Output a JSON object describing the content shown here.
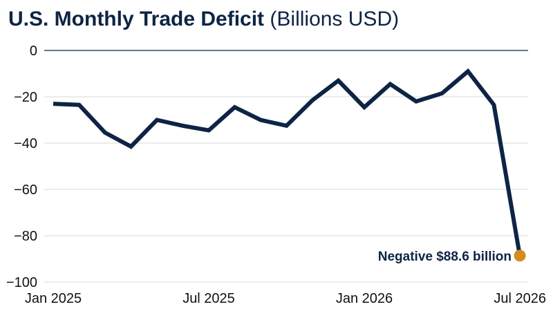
{
  "title": {
    "main": "U.S. Monthly Trade Deficit",
    "sub": "(Billions USD)"
  },
  "chart_data": {
    "type": "line",
    "title": "U.S. Monthly Trade Deficit (Billions USD)",
    "x": [
      "2025-01",
      "2025-02",
      "2025-03",
      "2025-04",
      "2025-05",
      "2025-06",
      "2025-07",
      "2025-08",
      "2025-09",
      "2025-10",
      "2025-11",
      "2025-12",
      "2026-01",
      "2026-02",
      "2026-03",
      "2026-04",
      "2026-05",
      "2026-06",
      "2026-07"
    ],
    "series": [
      {
        "name": "",
        "values": [
          -23,
          -23.5,
          -35.5,
          -41.5,
          -30,
          -32.5,
          -34.5,
          -24.5,
          -30,
          -32.5,
          -21.5,
          -13,
          -24.5,
          -14.5,
          -22,
          -18.5,
          -9,
          -23.5,
          -88.6
        ]
      }
    ],
    "ylim": [
      -100,
      0
    ],
    "yticks": [
      0,
      -20,
      -40,
      -60,
      -80,
      -100
    ],
    "ytick_labels": [
      "0",
      "−20",
      "−40",
      "−60",
      "−80",
      "−100"
    ],
    "xticks": [
      "2025-01",
      "2025-07",
      "2026-01",
      "2026-07"
    ],
    "xtick_labels": [
      "Jan 2025",
      "Jul 2025",
      "Jan 2026",
      "Jul 2026"
    ],
    "grid": true,
    "colors": {
      "line": "#0d2444",
      "highlight_point": "#d58b1e"
    },
    "annotation": {
      "x": "2026-07",
      "y": -88.6,
      "text": "Negative $88.6 billion"
    }
  }
}
